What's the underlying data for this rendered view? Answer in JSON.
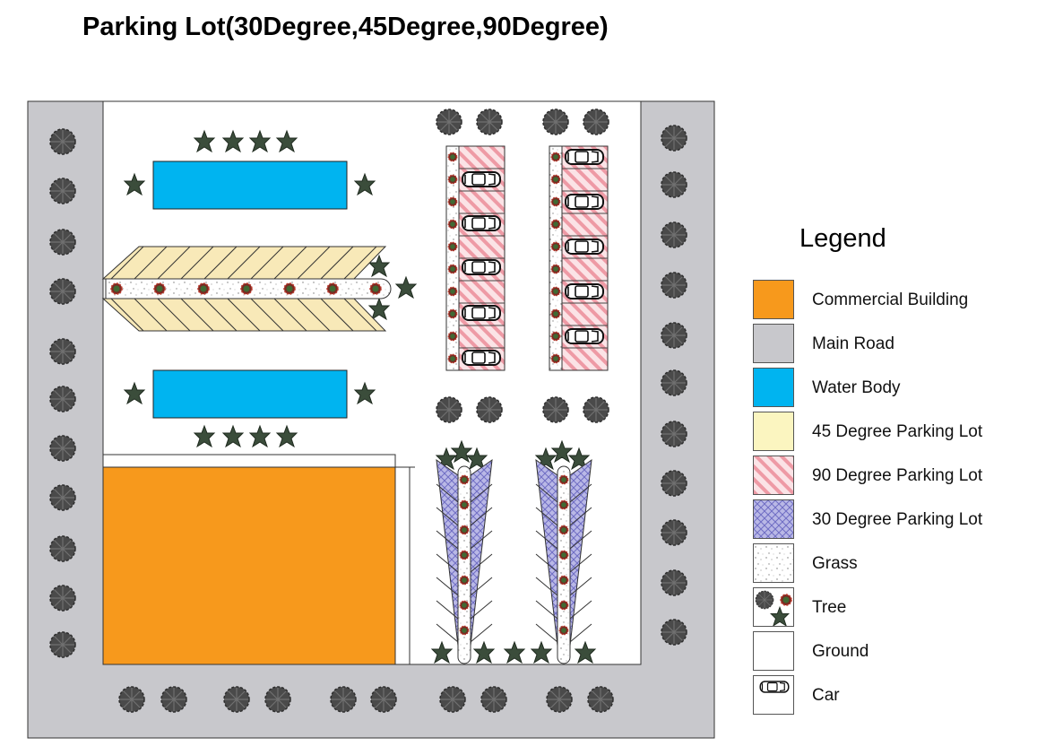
{
  "title": "Parking Lot(30Degree,45Degree,90Degree)",
  "colors": {
    "commercial": "#f7991c",
    "road": "#c8c8cc",
    "water": "#00b4f0",
    "deg45": "#f8e9b8",
    "deg90": "#f7c7ce",
    "deg30": "#a9a8dc",
    "ground": "#ffffff"
  },
  "legend": {
    "title": "Legend",
    "items": [
      {
        "label": "Commercial Building",
        "swatch": "commercial"
      },
      {
        "label": "Main Road",
        "swatch": "road"
      },
      {
        "label": "Water Body",
        "swatch": "water"
      },
      {
        "label": "45 Degree Parking Lot",
        "swatch": "deg45"
      },
      {
        "label": "90 Degree Parking Lot",
        "swatch": "deg90"
      },
      {
        "label": "30 Degree Parking Lot",
        "swatch": "deg30"
      },
      {
        "label": "Grass",
        "swatch": "grass"
      },
      {
        "label": "Tree",
        "swatch": "tree"
      },
      {
        "label": "Ground",
        "swatch": "ground"
      },
      {
        "label": "Car",
        "swatch": "car"
      }
    ]
  }
}
